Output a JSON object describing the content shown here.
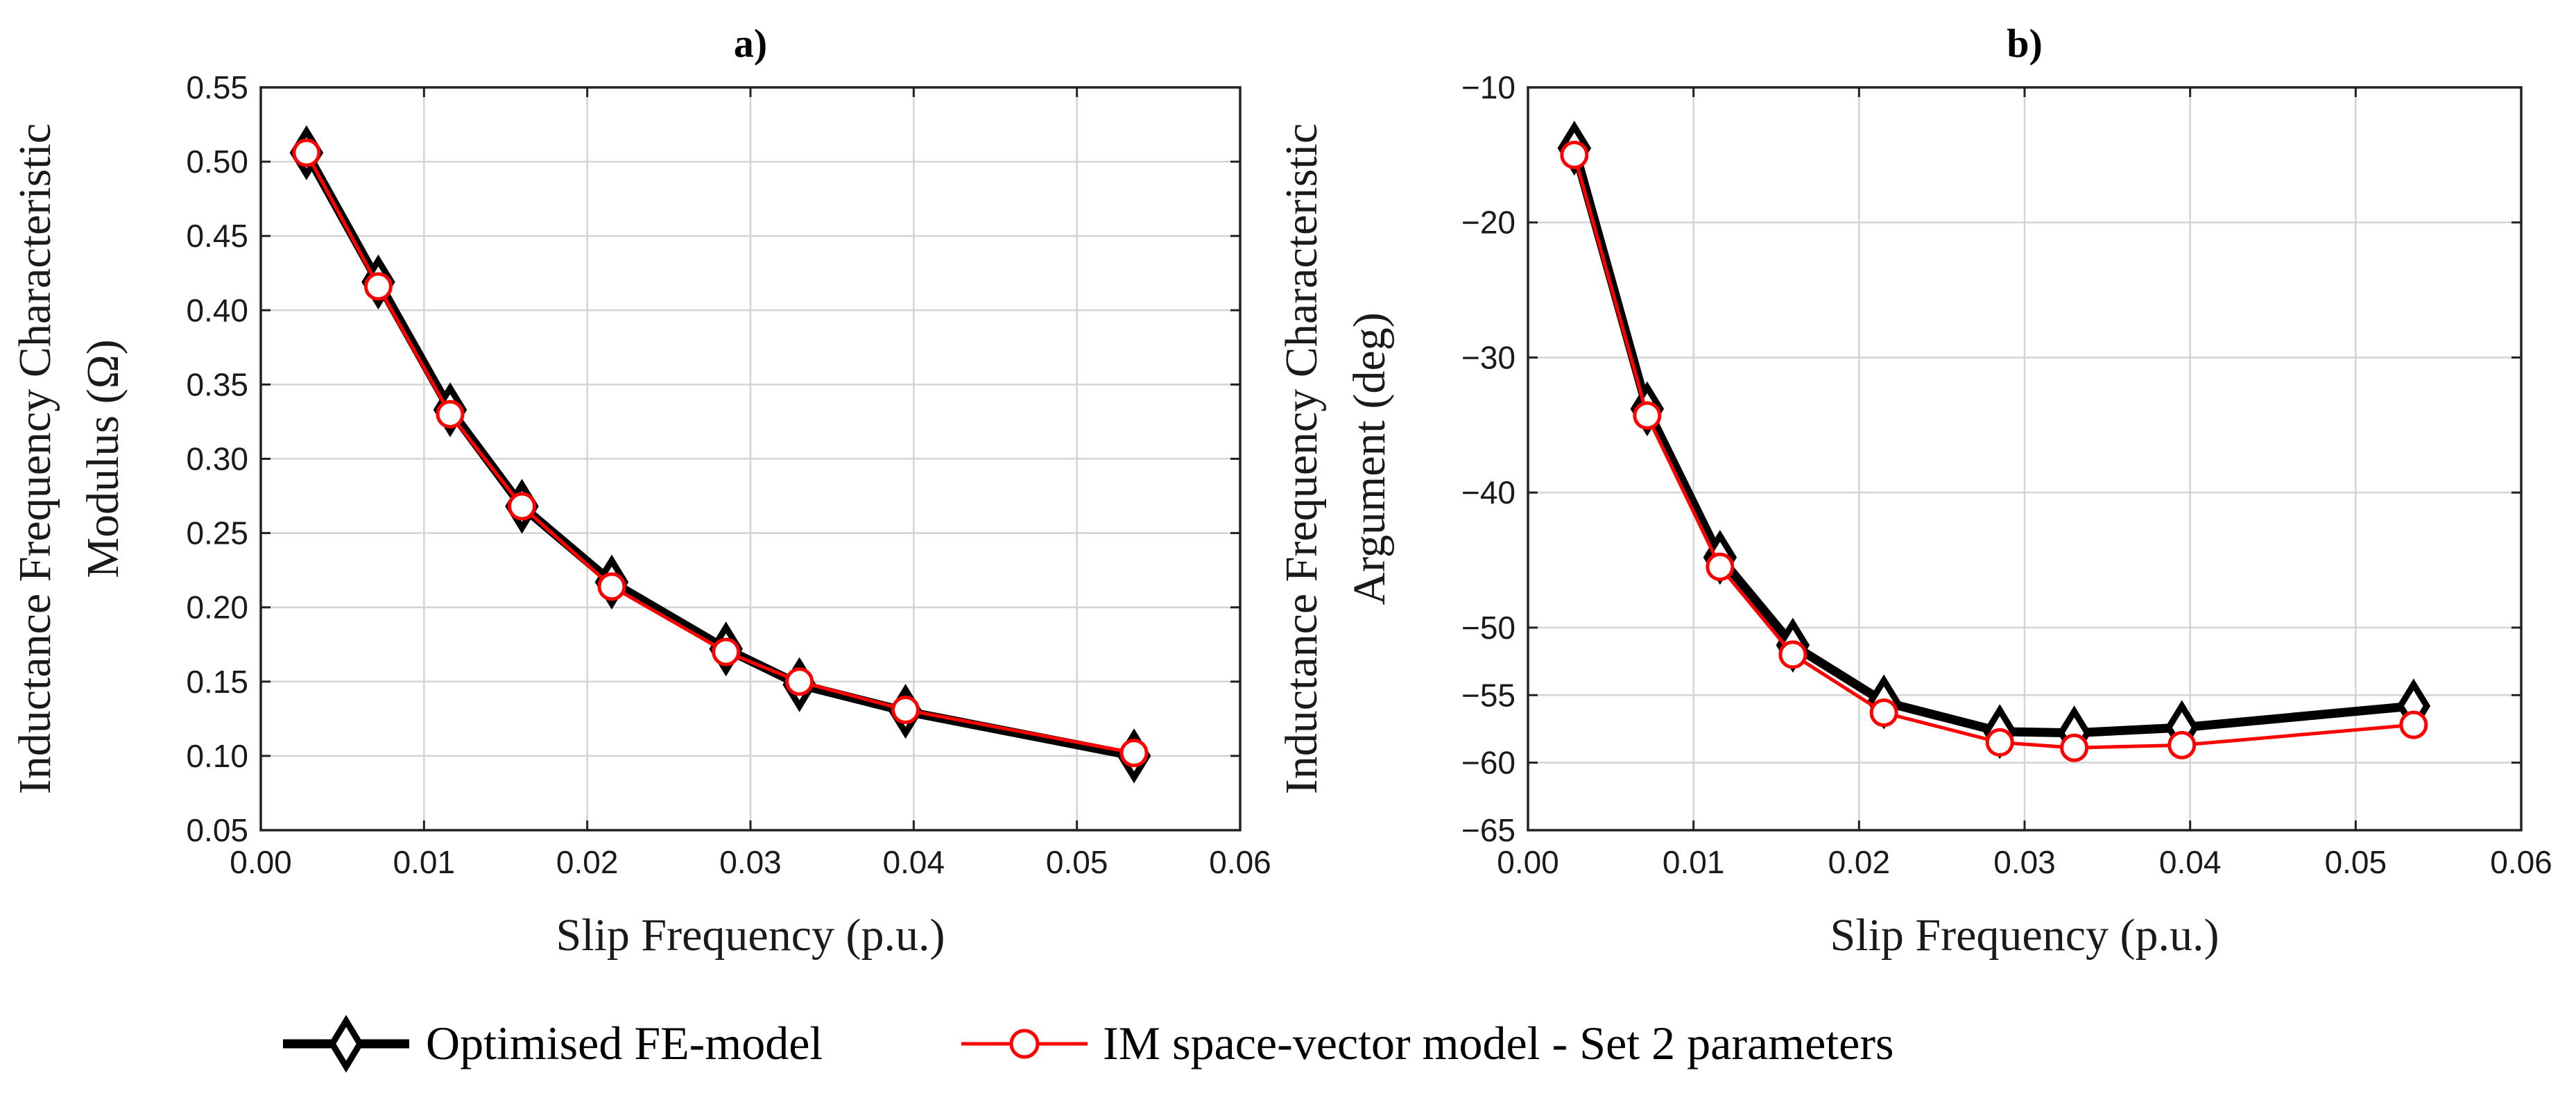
{
  "chart_data": [
    {
      "type": "line",
      "title": "a)",
      "xlabel": "Slip Frequency (p.u.)",
      "ylabel_lines": [
        "Inductance Frequency Characteristic",
        "Modulus (Ω)"
      ],
      "xlim": [
        0,
        0.06
      ],
      "ylim": [
        0.05,
        0.55
      ],
      "grid": true,
      "xticks": [
        0,
        0.01,
        0.02,
        0.03,
        0.04,
        0.05,
        0.06
      ],
      "xtick_labels": [
        "0.00",
        "0.01",
        "0.02",
        "0.03",
        "0.04",
        "0.05",
        "0.06"
      ],
      "yticks": [
        0.05,
        0.1,
        0.15,
        0.2,
        0.25,
        0.3,
        0.35,
        0.4,
        0.45,
        0.5,
        0.55
      ],
      "ytick_labels": [
        "0.05",
        "0.10",
        "0.15",
        "0.20",
        "0.25",
        "0.30",
        "0.35",
        "0.40",
        "0.45",
        "0.50",
        "0.55"
      ],
      "x": [
        0.0028,
        0.0072,
        0.0116,
        0.016,
        0.0215,
        0.0285,
        0.033,
        0.0395,
        0.0535
      ],
      "series": [
        {
          "name": "Optimised FE-model",
          "color": "#000000",
          "marker": "diamond",
          "values": [
            0.506,
            0.419,
            0.333,
            0.268,
            0.217,
            0.172,
            0.148,
            0.13,
            0.1
          ]
        },
        {
          "name": "IM space-vector model - Set 2 parameters",
          "color": "#ff0000",
          "marker": "circle",
          "values": [
            0.506,
            0.416,
            0.33,
            0.268,
            0.214,
            0.17,
            0.15,
            0.131,
            0.102
          ]
        }
      ]
    },
    {
      "type": "line",
      "title": "b)",
      "xlabel": "Slip Frequency (p.u.)",
      "ylabel_lines": [
        "Inductance Frequency Characteristic",
        "Argument (deg)"
      ],
      "xlim": [
        0,
        0.06
      ],
      "ylim": [
        -65,
        -10
      ],
      "grid": true,
      "xticks": [
        0,
        0.01,
        0.02,
        0.03,
        0.04,
        0.05,
        0.06
      ],
      "xtick_labels": [
        "0.00",
        "0.01",
        "0.02",
        "0.03",
        "0.04",
        "0.05",
        "0.06"
      ],
      "yticks": [
        -65,
        -60,
        -55,
        -50,
        -40,
        -30,
        -20,
        -10
      ],
      "ytick_labels": [
        "−65",
        "−60",
        "−55",
        "−50",
        "−40",
        "−30",
        "−20",
        "−10"
      ],
      "x": [
        0.0028,
        0.0072,
        0.0116,
        0.016,
        0.0215,
        0.0285,
        0.033,
        0.0395,
        0.0535
      ],
      "series": [
        {
          "name": "Optimised FE-model",
          "color": "#000000",
          "marker": "diamond",
          "values": [
            -14.5,
            -33.8,
            -44.8,
            -51.3,
            -55.5,
            -57.7,
            -57.8,
            -57.4,
            -55.8
          ]
        },
        {
          "name": "IM space-vector model - Set 2 parameters",
          "color": "#ff0000",
          "marker": "circle",
          "values": [
            -15.0,
            -34.3,
            -45.5,
            -52.0,
            -56.3,
            -58.5,
            -58.9,
            -58.7,
            -57.2
          ]
        }
      ]
    }
  ],
  "legend": {
    "position": "bottom-center",
    "entries": [
      {
        "label": "Optimised FE-model",
        "color": "#000000",
        "marker": "diamond"
      },
      {
        "label": "IM space-vector model - Set 2 parameters",
        "color": "#ff0000",
        "marker": "circle"
      }
    ]
  }
}
